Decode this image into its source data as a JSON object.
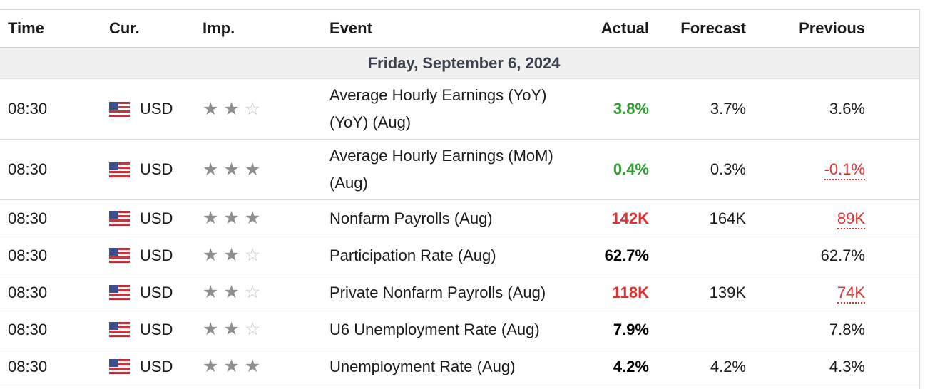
{
  "header": {
    "time": "Time",
    "currency": "Cur.",
    "importance": "Imp.",
    "event": "Event",
    "actual": "Actual",
    "forecast": "Forecast",
    "previous": "Previous"
  },
  "day_label": "Friday, September 6, 2024",
  "colors": {
    "better": "#2f9e2f",
    "worse": "#e03131",
    "star_on": "#8e8e8e",
    "star_off": "#c4c4c4"
  },
  "rows": [
    {
      "time": "08:30",
      "currency": "USD",
      "importance": 2,
      "event": "Average Hourly Earnings (YoY) (YoY) (Aug)",
      "actual": "3.8%",
      "actual_status": "green",
      "forecast": "3.7%",
      "previous": "3.6%",
      "previous_status": "normal"
    },
    {
      "time": "08:30",
      "currency": "USD",
      "importance": 3,
      "event": "Average Hourly Earnings (MoM) (Aug)",
      "actual": "0.4%",
      "actual_status": "green",
      "forecast": "0.3%",
      "previous": "-0.1%",
      "previous_status": "revised"
    },
    {
      "time": "08:30",
      "currency": "USD",
      "importance": 3,
      "event": "Nonfarm Payrolls (Aug)",
      "actual": "142K",
      "actual_status": "red",
      "forecast": "164K",
      "previous": "89K",
      "previous_status": "revised"
    },
    {
      "time": "08:30",
      "currency": "USD",
      "importance": 2,
      "event": "Participation Rate (Aug)",
      "actual": "62.7%",
      "actual_status": "bold",
      "forecast": "",
      "previous": "62.7%",
      "previous_status": "normal"
    },
    {
      "time": "08:30",
      "currency": "USD",
      "importance": 2,
      "event": "Private Nonfarm Payrolls (Aug)",
      "actual": "118K",
      "actual_status": "red",
      "forecast": "139K",
      "previous": "74K",
      "previous_status": "revised"
    },
    {
      "time": "08:30",
      "currency": "USD",
      "importance": 2,
      "event": "U6 Unemployment Rate (Aug)",
      "actual": "7.9%",
      "actual_status": "bold",
      "forecast": "",
      "previous": "7.8%",
      "previous_status": "normal"
    },
    {
      "time": "08:30",
      "currency": "USD",
      "importance": 3,
      "event": "Unemployment Rate (Aug)",
      "actual": "4.2%",
      "actual_status": "bold",
      "forecast": "4.2%",
      "previous": "4.3%",
      "previous_status": "normal"
    }
  ]
}
